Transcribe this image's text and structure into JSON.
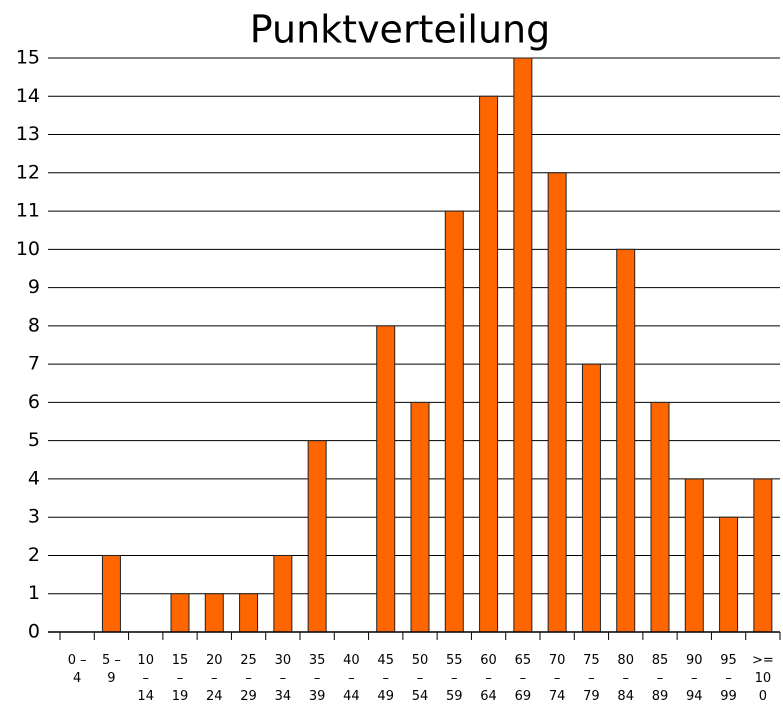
{
  "chart_data": {
    "type": "bar",
    "title": "Punktverteilung",
    "categories": [
      "0 – 4",
      "5 – 9",
      "10 – 14",
      "15 – 19",
      "20 – 24",
      "25 – 29",
      "30 – 34",
      "35 – 39",
      "40 – 44",
      "45 – 49",
      "50 – 54",
      "55 – 59",
      "60 – 64",
      "65 – 69",
      "70 – 74",
      "75 – 79",
      "80 – 84",
      "85 – 89",
      "90 – 94",
      "95 – 99",
      ">= 100"
    ],
    "values": [
      0,
      2,
      0,
      1,
      1,
      1,
      2,
      5,
      0,
      8,
      6,
      11,
      14,
      15,
      12,
      7,
      10,
      6,
      4,
      3,
      4
    ],
    "color": "#ff6600",
    "ylim": [
      0,
      15
    ],
    "yticks": [
      0,
      1,
      2,
      3,
      4,
      5,
      6,
      7,
      8,
      9,
      10,
      11,
      12,
      13,
      14,
      15
    ],
    "grid": true
  }
}
